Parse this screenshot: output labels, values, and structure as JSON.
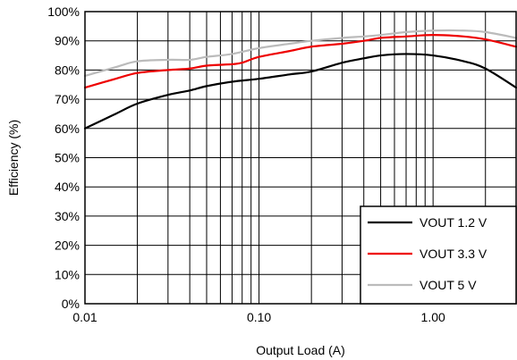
{
  "chart_data": {
    "type": "line",
    "title": "",
    "xlabel": "Output Load (A)",
    "ylabel": "Efficiency (%)",
    "xscale": "log",
    "xlim": [
      0.01,
      3
    ],
    "ylim": [
      0,
      100
    ],
    "x_tick_labels": [
      "0.01",
      "0.10",
      "1.00"
    ],
    "y_tick_labels": [
      "0%",
      "10%",
      "20%",
      "30%",
      "40%",
      "50%",
      "60%",
      "70%",
      "80%",
      "90%",
      "100%"
    ],
    "grid": true,
    "legend_position": "bottom-right",
    "series": [
      {
        "name": "VOUT 1.2 V",
        "color": "#000000",
        "x": [
          0.01,
          0.015,
          0.02,
          0.03,
          0.04,
          0.05,
          0.07,
          0.1,
          0.15,
          0.2,
          0.3,
          0.4,
          0.5,
          0.7,
          1.0,
          1.5,
          2.0,
          3.0
        ],
        "y": [
          60,
          65,
          68.5,
          71.5,
          73,
          74.5,
          76,
          77,
          78.5,
          79.5,
          82.5,
          84,
          85,
          85.5,
          85,
          83,
          80.5,
          74
        ]
      },
      {
        "name": "VOUT 3.3 V",
        "color": "#ee0000",
        "x": [
          0.01,
          0.015,
          0.02,
          0.03,
          0.04,
          0.05,
          0.07,
          0.08,
          0.1,
          0.15,
          0.2,
          0.3,
          0.4,
          0.5,
          0.7,
          1.0,
          1.5,
          2.0,
          3.0
        ],
        "y": [
          74,
          77,
          79,
          80,
          80.5,
          81.5,
          82,
          82.5,
          84.5,
          86.5,
          88,
          89,
          90,
          91,
          91.5,
          92,
          91.5,
          90.5,
          88
        ]
      },
      {
        "name": "VOUT 5 V",
        "color": "#bbbbbb",
        "x": [
          0.01,
          0.015,
          0.02,
          0.03,
          0.04,
          0.05,
          0.07,
          0.1,
          0.15,
          0.2,
          0.3,
          0.4,
          0.5,
          0.7,
          1.0,
          1.5,
          2.0,
          3.0
        ],
        "y": [
          78,
          81,
          83,
          83.5,
          83.5,
          84.5,
          85.5,
          87.5,
          89,
          90,
          91,
          91.5,
          92,
          93,
          93.5,
          93.5,
          93,
          91
        ]
      }
    ]
  }
}
